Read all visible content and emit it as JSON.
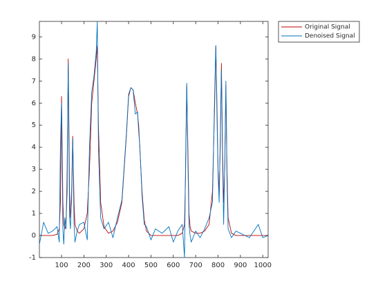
{
  "chart_data": {
    "type": "line",
    "x": [
      1,
      20,
      40,
      60,
      80,
      90,
      95,
      100,
      103,
      106,
      110,
      115,
      120,
      125,
      130,
      133,
      136,
      140,
      145,
      150,
      153,
      156,
      160,
      170,
      180,
      200,
      215,
      225,
      235,
      245,
      255,
      260,
      265,
      275,
      290,
      310,
      330,
      350,
      370,
      390,
      400,
      410,
      420,
      430,
      440,
      445,
      450,
      460,
      470,
      480,
      500,
      520,
      550,
      580,
      600,
      620,
      640,
      650,
      655,
      660,
      665,
      670,
      675,
      680,
      700,
      720,
      740,
      760,
      775,
      785,
      790,
      795,
      800,
      805,
      810,
      815,
      820,
      825,
      830,
      835,
      840,
      845,
      860,
      880,
      900,
      940,
      980,
      1000,
      1024
    ],
    "series": [
      {
        "name": "Original Signal",
        "color": "#c00000",
        "values": [
          0,
          0,
          0,
          0,
          0.05,
          0.3,
          1.5,
          6.3,
          4,
          1.5,
          0.5,
          0.3,
          0.5,
          2,
          8,
          5,
          2,
          0.8,
          1.5,
          4.5,
          3,
          1.5,
          0.5,
          0.2,
          0.1,
          0.3,
          1,
          3,
          6,
          7,
          8,
          8.6,
          5,
          1.5,
          0.4,
          0.1,
          0.2,
          0.6,
          1.5,
          4.5,
          6.3,
          6.7,
          6.6,
          6,
          5.5,
          5,
          4,
          2,
          0.7,
          0.2,
          0,
          0,
          0,
          0,
          0,
          0,
          0.1,
          0.5,
          3,
          6.8,
          4,
          1,
          0.4,
          0.2,
          0.1,
          0.1,
          0.2,
          0.5,
          2,
          6,
          8.6,
          6,
          3,
          2,
          4,
          7.8,
          4,
          1.5,
          3,
          6.8,
          3,
          0.8,
          0.1,
          0,
          0,
          0,
          0,
          0,
          0
        ]
      },
      {
        "name": "Denoised Signal",
        "color": "#0072bd",
        "values": [
          -0.4,
          0.6,
          0.1,
          0.2,
          0.4,
          -0.3,
          4,
          6,
          3,
          0.3,
          -0.4,
          0.8,
          0.3,
          3,
          7.8,
          4,
          0.8,
          0.3,
          2,
          4.4,
          2.5,
          0.5,
          -0.3,
          0.2,
          0.5,
          0.6,
          -0.2,
          4,
          6.5,
          7.2,
          8.3,
          9.7,
          4,
          0.8,
          0.3,
          0.6,
          -0.1,
          0.8,
          1.6,
          4.6,
          6.4,
          6.7,
          6.6,
          5.5,
          5.6,
          4.7,
          4.1,
          1.8,
          0.5,
          0.4,
          -0.2,
          0.3,
          0.1,
          0.4,
          -0.3,
          0.2,
          0.5,
          -1,
          3.5,
          6.9,
          3.5,
          0.5,
          0,
          -0.3,
          0.2,
          -0.1,
          0.3,
          0.8,
          1.5,
          6.5,
          8.6,
          5.5,
          2.8,
          1.5,
          4.5,
          7.5,
          3.5,
          0.5,
          3.2,
          7,
          2.5,
          0.3,
          -0.1,
          0.2,
          0.1,
          -0.1,
          0.5,
          -0.1,
          0
        ]
      }
    ],
    "xlim": [
      1,
      1024
    ],
    "xticks": [
      100,
      200,
      300,
      400,
      500,
      600,
      700,
      800,
      900,
      1000
    ],
    "ylim": [
      -1,
      9.7
    ],
    "yticks": [
      -1,
      0,
      1,
      2,
      3,
      4,
      5,
      6,
      7,
      8,
      9
    ],
    "grid": false,
    "legend": "northeastoutside"
  }
}
